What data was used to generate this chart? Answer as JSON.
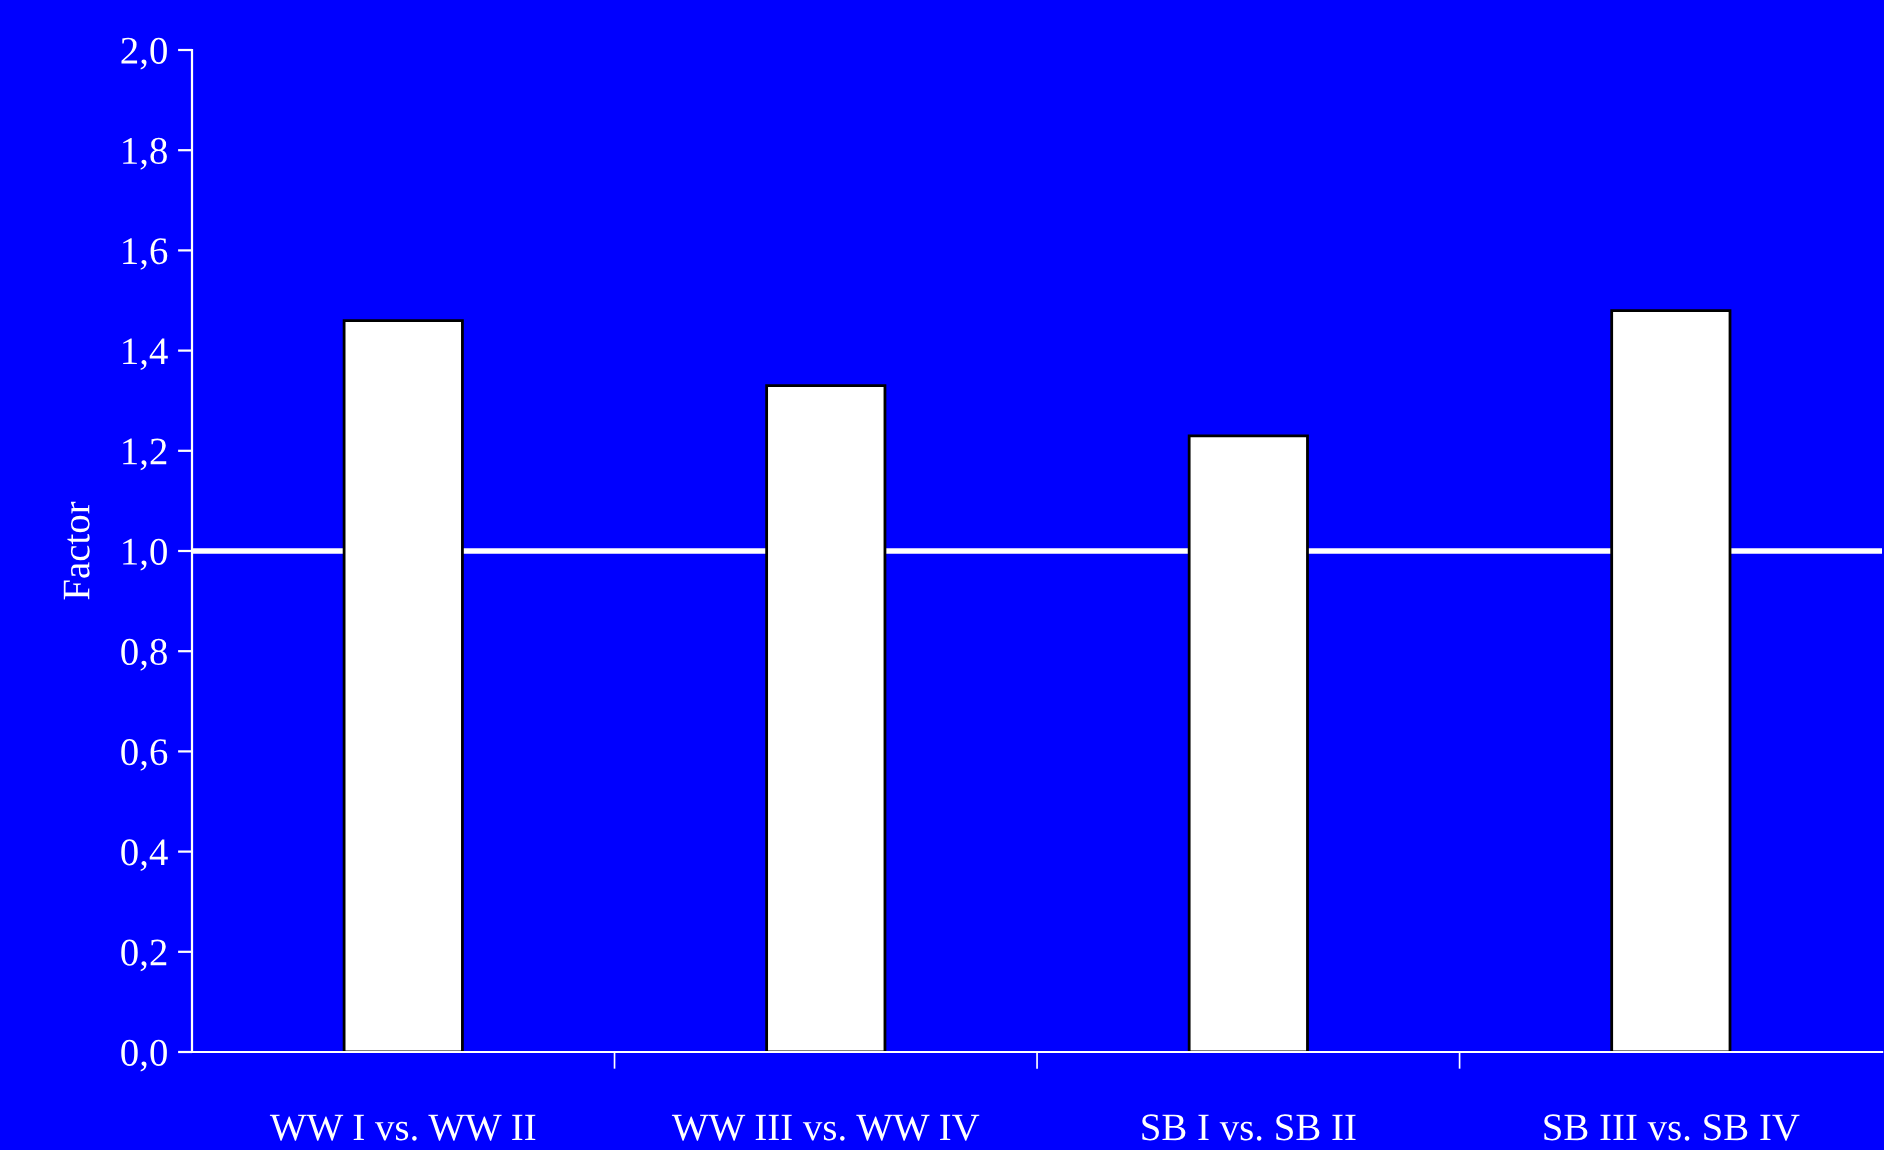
{
  "chart_data": {
    "type": "bar",
    "ylabel": "Factor",
    "categories": [
      "WW I vs. WW II",
      "WW III vs. WW IV",
      "SB I vs. SB II",
      "SB III vs. SB IV"
    ],
    "values": [
      1.46,
      1.33,
      1.23,
      1.48
    ],
    "color": "#ffffff",
    "ylim": [
      0,
      2
    ],
    "yticks": [
      {
        "value": 0,
        "label": "0,0"
      },
      {
        "value": 0.2,
        "label": "0,2"
      },
      {
        "value": 0.4,
        "label": "0,4"
      },
      {
        "value": 0.6,
        "label": "0,6"
      },
      {
        "value": 0.8,
        "label": "0,8"
      },
      {
        "value": 1,
        "label": "1,0"
      },
      {
        "value": 1.2,
        "label": "1,2"
      },
      {
        "value": 1.4,
        "label": "1,4"
      },
      {
        "value": 1.6,
        "label": "1,6"
      },
      {
        "value": 1.8,
        "label": "1,8"
      },
      {
        "value": 2,
        "label": "2,0"
      }
    ],
    "ref_lines": [
      {
        "axis": "y",
        "value": 1,
        "color": "#ffffff"
      }
    ],
    "grid": false,
    "legend": false
  }
}
